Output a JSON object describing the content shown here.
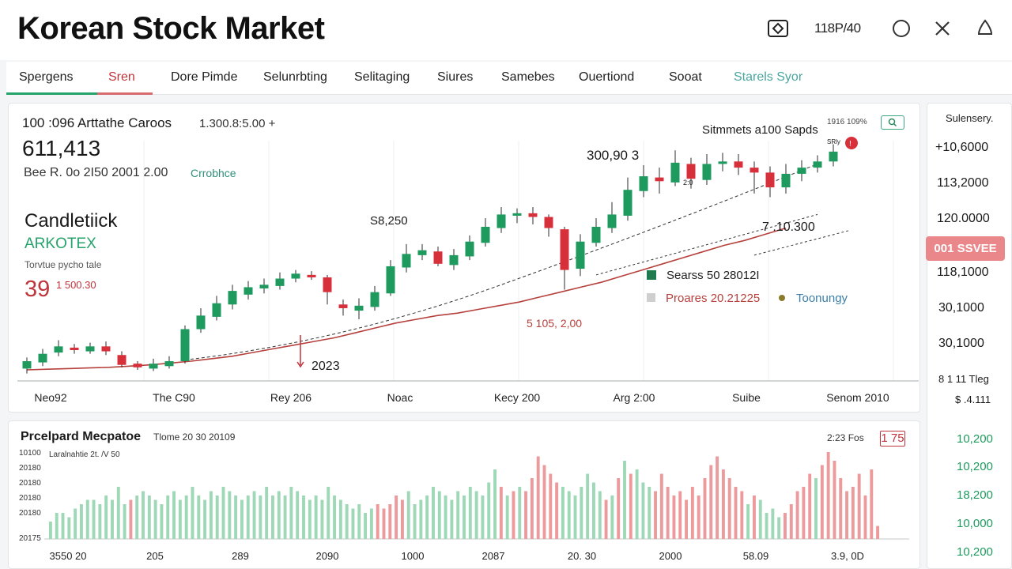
{
  "app": {
    "title": "Korean Stock Market",
    "toolbar_text": "118P/40"
  },
  "toolbar": {
    "icons": [
      "diamond-frame-icon",
      "circle-icon",
      "close-icon",
      "bell-icon"
    ]
  },
  "tabs": [
    {
      "label": "Spergens",
      "state": "active"
    },
    {
      "label": "Sren",
      "state": "highlight"
    },
    {
      "label": "Dore Pimde"
    },
    {
      "label": "Selunrbting"
    },
    {
      "label": "Selitaging"
    },
    {
      "label": "Siures"
    },
    {
      "label": "Samebes"
    },
    {
      "label": "Ouertiond"
    },
    {
      "label": "Sooat"
    },
    {
      "label": "Starels Syor"
    }
  ],
  "main": {
    "header_line": "100 :096 Arttathe Caroos",
    "header_range": "1.300.8:5.00 +",
    "big_value": "611,413",
    "sub_line": "Bee R. 0o 2I50 2001 2.00",
    "sub_link": "Crrobhce",
    "chart_type_label": "Candletiick",
    "chart_ticker": "ARKOTEX",
    "chart_note": "Torvtue pycho tale",
    "change_big": "39",
    "change_small": "1 500.30",
    "top_right_small": "1916 109%",
    "headline": "Sitmmets a100 Sapds",
    "badge_small": "SRly",
    "zoom_icon": "search-icon"
  },
  "legend": [
    {
      "label": "Searss 50 28012I",
      "color": "#1f7a4e"
    },
    {
      "label": "Proares 20.21225",
      "color": "#c8c8c8"
    },
    {
      "label": "Toonungy",
      "color": "#8a7a2a"
    }
  ],
  "colors": {
    "up": "#1e9a5f",
    "down": "#d8303b",
    "ma_line": "#b6403c",
    "brand_green": "#25a36b"
  },
  "chart_data": {
    "type": "candlestick",
    "x_tick_labels": [
      "Neo92",
      "The C90",
      "Rey 206",
      "Noac",
      "Kecy 200",
      "Arg 2:00",
      "Suibe",
      "Senom 2010"
    ],
    "candles": [
      {
        "open": 1.0,
        "close": 1.6,
        "high": 1.9,
        "low": 0.6
      },
      {
        "open": 1.5,
        "close": 2.2,
        "high": 2.6,
        "low": 1.2
      },
      {
        "open": 2.3,
        "close": 2.8,
        "high": 3.3,
        "low": 2.0
      },
      {
        "open": 2.7,
        "close": 2.5,
        "high": 3.0,
        "low": 2.2
      },
      {
        "open": 2.4,
        "close": 2.8,
        "high": 3.1,
        "low": 2.2
      },
      {
        "open": 2.8,
        "close": 2.4,
        "high": 3.2,
        "low": 2.1
      },
      {
        "open": 2.1,
        "close": 1.3,
        "high": 2.4,
        "low": 1.1
      },
      {
        "open": 1.4,
        "close": 1.1,
        "high": 1.6,
        "low": 0.9
      },
      {
        "open": 1.0,
        "close": 1.4,
        "high": 1.8,
        "low": 0.8
      },
      {
        "open": 1.2,
        "close": 1.6,
        "high": 2.0,
        "low": 1.0
      },
      {
        "open": 1.6,
        "close": 4.2,
        "high": 4.5,
        "low": 1.4
      },
      {
        "open": 4.2,
        "close": 5.3,
        "high": 5.9,
        "low": 3.9
      },
      {
        "open": 5.2,
        "close": 6.3,
        "high": 6.9,
        "low": 4.9
      },
      {
        "open": 6.2,
        "close": 7.3,
        "high": 7.8,
        "low": 5.8
      },
      {
        "open": 7.0,
        "close": 7.6,
        "high": 8.1,
        "low": 6.6
      },
      {
        "open": 7.5,
        "close": 7.8,
        "high": 8.3,
        "low": 7.1
      },
      {
        "open": 7.7,
        "close": 8.3,
        "high": 8.8,
        "low": 7.4
      },
      {
        "open": 8.3,
        "close": 8.7,
        "high": 9.0,
        "low": 8.0
      },
      {
        "open": 8.6,
        "close": 8.4,
        "high": 8.9,
        "low": 8.2
      },
      {
        "open": 8.4,
        "close": 7.2,
        "high": 8.6,
        "low": 6.2
      },
      {
        "open": 6.2,
        "close": 5.9,
        "high": 6.6,
        "low": 5.3
      },
      {
        "open": 5.7,
        "close": 6.1,
        "high": 6.7,
        "low": 5.0
      },
      {
        "open": 6.0,
        "close": 7.2,
        "high": 7.7,
        "low": 5.7
      },
      {
        "open": 7.1,
        "close": 9.3,
        "high": 9.8,
        "low": 6.9
      },
      {
        "open": 9.2,
        "close": 10.3,
        "high": 11.1,
        "low": 8.8
      },
      {
        "open": 10.2,
        "close": 10.6,
        "high": 11.1,
        "low": 9.8
      },
      {
        "open": 10.5,
        "close": 9.5,
        "high": 10.9,
        "low": 9.3
      },
      {
        "open": 9.4,
        "close": 10.2,
        "high": 10.7,
        "low": 9.0
      },
      {
        "open": 10.1,
        "close": 11.3,
        "high": 11.8,
        "low": 9.8
      },
      {
        "open": 11.2,
        "close": 12.5,
        "high": 13.2,
        "low": 10.9
      },
      {
        "open": 12.4,
        "close": 13.5,
        "high": 14.1,
        "low": 12.0
      },
      {
        "open": 13.4,
        "close": 13.6,
        "high": 14.0,
        "low": 12.8
      },
      {
        "open": 13.6,
        "close": 13.3,
        "high": 14.1,
        "low": 12.7
      },
      {
        "open": 13.3,
        "close": 12.4,
        "high": 13.5,
        "low": 11.7
      },
      {
        "open": 12.3,
        "close": 9.0,
        "high": 12.5,
        "low": 7.4
      },
      {
        "open": 9.1,
        "close": 11.3,
        "high": 11.9,
        "low": 8.5
      },
      {
        "open": 11.2,
        "close": 12.5,
        "high": 13.2,
        "low": 10.9
      },
      {
        "open": 12.4,
        "close": 13.5,
        "high": 14.5,
        "low": 12.0
      },
      {
        "open": 13.4,
        "close": 15.5,
        "high": 16.5,
        "low": 13.0
      },
      {
        "open": 15.4,
        "close": 16.6,
        "high": 17.5,
        "low": 14.9
      },
      {
        "open": 16.5,
        "close": 16.2,
        "high": 17.3,
        "low": 15.2
      },
      {
        "open": 16.1,
        "close": 17.7,
        "high": 18.7,
        "low": 15.8
      },
      {
        "open": 17.6,
        "close": 16.4,
        "high": 18.1,
        "low": 15.6
      },
      {
        "open": 16.3,
        "close": 17.6,
        "high": 18.4,
        "low": 15.9
      },
      {
        "open": 17.6,
        "close": 17.8,
        "high": 18.5,
        "low": 17.0
      },
      {
        "open": 17.8,
        "close": 17.3,
        "high": 18.4,
        "low": 16.7
      },
      {
        "open": 17.3,
        "close": 16.9,
        "high": 17.8,
        "low": 15.2
      },
      {
        "open": 16.9,
        "close": 15.7,
        "high": 17.4,
        "low": 14.9
      },
      {
        "open": 15.7,
        "close": 16.8,
        "high": 17.6,
        "low": 15.2
      },
      {
        "open": 16.8,
        "close": 17.3,
        "high": 17.9,
        "low": 16.2
      },
      {
        "open": 17.3,
        "close": 17.8,
        "high": 18.3,
        "low": 16.9
      },
      {
        "open": 17.8,
        "close": 18.6,
        "high": 19.2,
        "low": 17.4
      }
    ],
    "moving_average": [
      0.9,
      0.95,
      1.0,
      1.05,
      1.1,
      1.2,
      1.3,
      1.45,
      1.6,
      1.8,
      2.0,
      2.3,
      2.6,
      2.9,
      3.2,
      3.5,
      3.9,
      4.3,
      4.7,
      5.0,
      5.3,
      5.5,
      5.8,
      6.1,
      6.4,
      6.8,
      7.2,
      7.6,
      8.0,
      8.5,
      9.0,
      9.5,
      10.0,
      10.5,
      11.0,
      11.4,
      11.9,
      12.4
    ],
    "annotations": [
      "S8,250",
      "2023",
      "5 105, 2,00",
      "300,90 3",
      "7 .10.300",
      "2:0"
    ],
    "price_axis": [
      "+10,6000",
      "113,2000",
      "120.0000",
      "118,1000",
      "30,1000",
      "30,1000",
      "8 1 11 Tleg",
      "$ .4.111"
    ],
    "current_price_label": "001 SSVEE"
  },
  "volume": {
    "title": "Prcelpard Mecpatoe",
    "subtitle": "Tlome 20 30 20109",
    "inner_label": "Laralnahtie 2t. /V 50",
    "right_text": "2:23 Fos",
    "right_badge": "1 75",
    "y_labels": [
      "10100",
      "20180",
      "20180",
      "20180",
      "20180",
      "20175"
    ],
    "x_labels": [
      "3550 20",
      "205",
      "289",
      "2090",
      "1000",
      "2087",
      "20. 30",
      "2000",
      "58.09",
      "3.9, 0D"
    ],
    "side_values": [
      "10,200",
      "10,200",
      "18,200",
      "10,000",
      "10,200"
    ],
    "bars": [
      0.2,
      0.3,
      0.3,
      0.25,
      0.35,
      0.4,
      0.45,
      0.45,
      0.4,
      0.5,
      0.45,
      0.6,
      0.4,
      0.45,
      0.5,
      0.55,
      0.5,
      0.45,
      0.4,
      0.5,
      0.55,
      0.45,
      0.5,
      0.6,
      0.5,
      0.45,
      0.55,
      0.5,
      0.6,
      0.55,
      0.5,
      0.45,
      0.5,
      0.55,
      0.5,
      0.6,
      0.5,
      0.55,
      0.5,
      0.6,
      0.55,
      0.5,
      0.45,
      0.5,
      0.45,
      0.6,
      0.5,
      0.45,
      0.4,
      0.35,
      0.4,
      0.3,
      0.35,
      0.4,
      0.35,
      0.4,
      0.5,
      0.45,
      0.55,
      0.4,
      0.45,
      0.5,
      0.6,
      0.55,
      0.5,
      0.45,
      0.55,
      0.5,
      0.6,
      0.55,
      0.5,
      0.65,
      0.8,
      0.6,
      0.5,
      0.55,
      0.6,
      0.55,
      0.7,
      0.95,
      0.85,
      0.75,
      0.65,
      0.6,
      0.55,
      0.5,
      0.6,
      0.75,
      0.65,
      0.55,
      0.45,
      0.5,
      0.7,
      0.9,
      0.75,
      0.8,
      0.65,
      0.6,
      0.55,
      0.75,
      0.6,
      0.5,
      0.55,
      0.45,
      0.6,
      0.5,
      0.7,
      0.85,
      0.95,
      0.8,
      0.7,
      0.6,
      0.55,
      0.4,
      0.5,
      0.45,
      0.3,
      0.35,
      0.25,
      0.3,
      0.4,
      0.55,
      0.6,
      0.75,
      0.7,
      0.85,
      1.0,
      0.9,
      0.7,
      0.55,
      0.6,
      0.75,
      0.5,
      0.8,
      0.15
    ],
    "bar_colors": "gggggggggggggrgggggggggggggggggggggggggggggggggggggggrrrrrgggggggggggggggrgrgrrrrrrgggggggrgrgrgggrrrrrrrrrrrrrrrgrggggrrrrrgrrrrrrrrrr"
  }
}
